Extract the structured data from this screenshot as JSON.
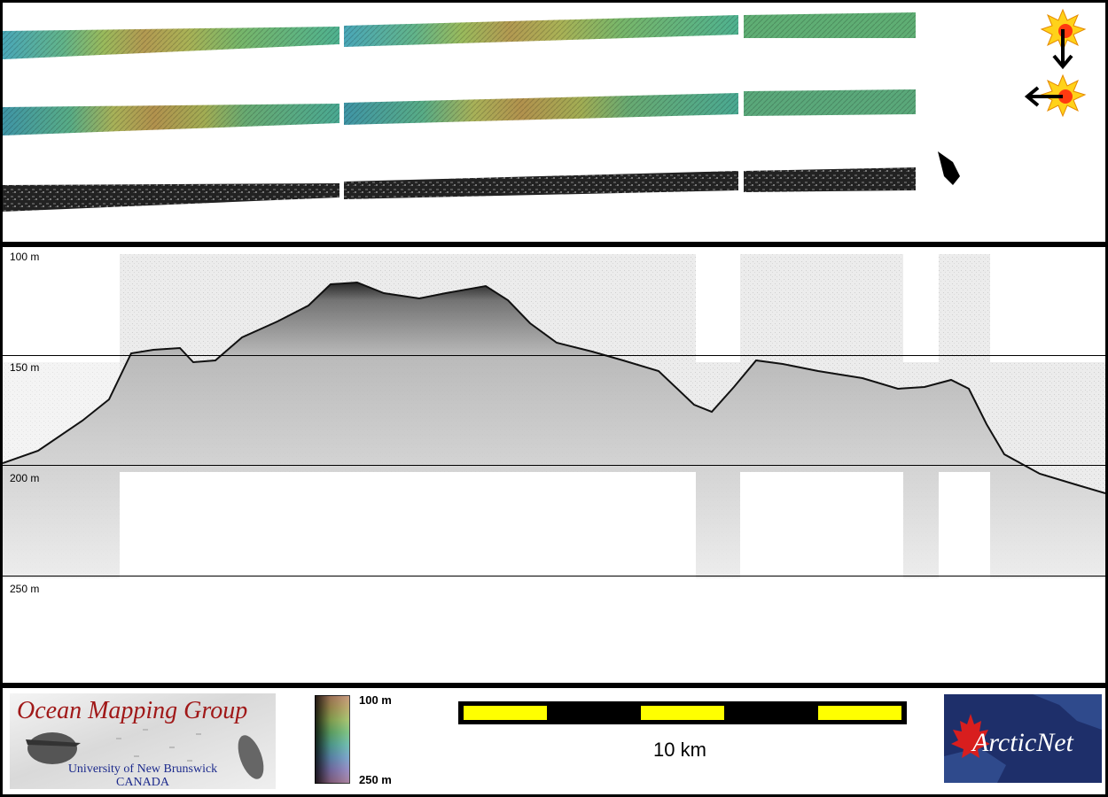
{
  "profile": {
    "depth_labels": [
      "100 m",
      "150 m",
      "200 m",
      "250 m"
    ]
  },
  "legend": {
    "colorbar_top_label": "100 m",
    "colorbar_bottom_label": "250 m",
    "scale_label": "10 km"
  },
  "logos": {
    "omg_title": "Ocean Mapping Group",
    "omg_university": "University of New Brunswick",
    "omg_country": "CANADA",
    "arcticnet": "ArcticNet"
  },
  "icons": {
    "sun_top": "sun-icon",
    "sun_bottom": "sun-icon",
    "arrow_down": "arrow-down-icon",
    "arrow_left": "arrow-left-icon",
    "ship_marker": "ship-icon"
  },
  "colors": {
    "frame": "#000000",
    "scale_yellow": "#ffff00",
    "omg_red": "#a01818",
    "omg_blue": "#1c2a8c",
    "arcticnet_bg": "#1e2f6a",
    "maple_red": "#d81e1e"
  }
}
